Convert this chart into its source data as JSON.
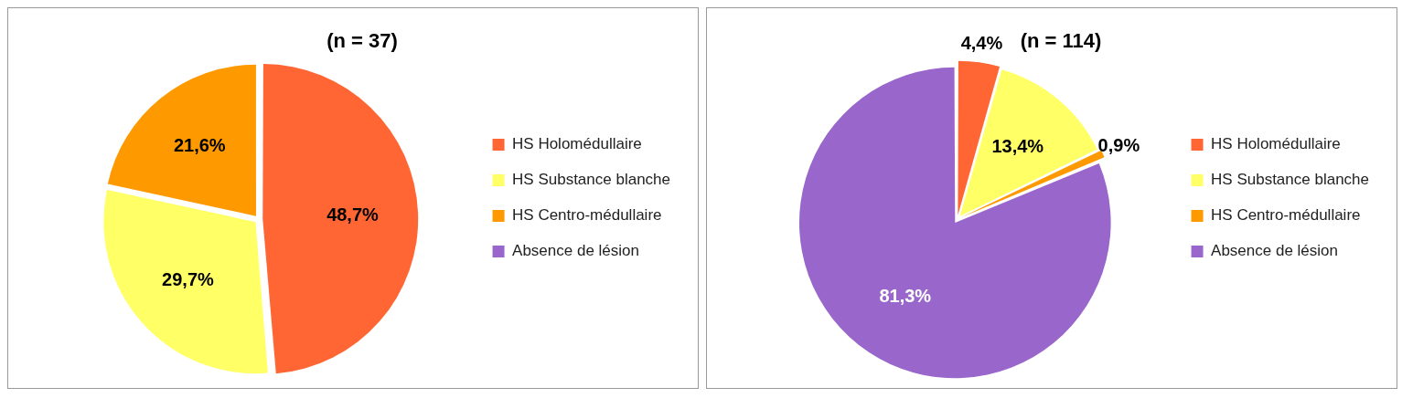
{
  "chart_data": [
    {
      "type": "pie",
      "title": "(n = 37)",
      "categories": [
        "HS Holomédullaire",
        "HS Substance blanche",
        "HS Centro-médullaire",
        "Absence de lésion"
      ],
      "values": [
        48.7,
        29.7,
        21.6,
        0
      ],
      "value_labels": [
        "48,7%",
        "29,7%",
        "21,6%",
        null
      ],
      "colors": [
        "#ff6633",
        "#ffff66",
        "#ff9900",
        "#9966cc"
      ],
      "legend": "right"
    },
    {
      "type": "pie",
      "title": "(n = 114)",
      "categories": [
        "HS Holomédullaire",
        "HS Substance blanche",
        "HS Centro-médullaire",
        "Absence de lésion"
      ],
      "values": [
        4.4,
        13.4,
        0.9,
        81.3
      ],
      "value_labels": [
        "4,4%",
        "13,4%",
        "0,9%",
        "81,3%"
      ],
      "colors": [
        "#ff6633",
        "#ffff66",
        "#ff9900",
        "#9966cc"
      ],
      "legend": "right"
    }
  ]
}
